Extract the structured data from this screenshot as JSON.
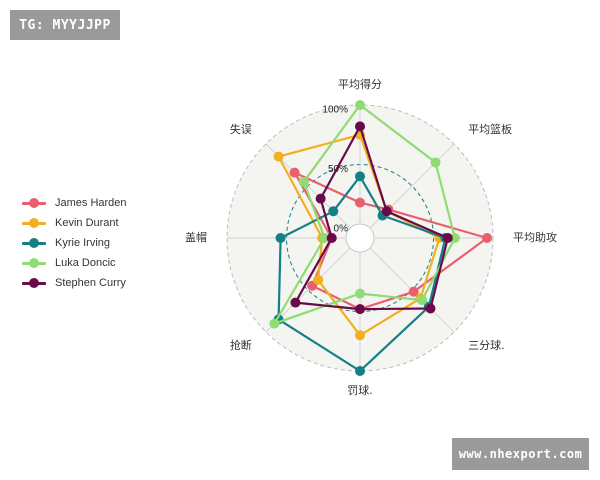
{
  "watermark_top": "TG: MYYJJPP",
  "watermark_bottom": "www.nhexport.com",
  "chart_data": {
    "type": "radar",
    "axes": [
      "平均得分",
      "平均篮板",
      "平均助攻",
      "三分球.",
      "罚球.",
      "抢断",
      "盖帽",
      "失误"
    ],
    "tick_labels": [
      "0%",
      "50%",
      "100%"
    ],
    "range": [
      0,
      100
    ],
    "series": [
      {
        "name": "James Harden",
        "color": "#e86070",
        "values": [
          18,
          22,
          95,
          52,
          48,
          45,
          12,
          66
        ]
      },
      {
        "name": "Kevin Durant",
        "color": "#f0b021",
        "values": [
          75,
          20,
          55,
          60,
          70,
          38,
          20,
          85
        ]
      },
      {
        "name": "Kyrie Irving",
        "color": "#167f85",
        "values": [
          40,
          15,
          60,
          70,
          100,
          85,
          55,
          20
        ]
      },
      {
        "name": "Luka Doncic",
        "color": "#8fdc72",
        "values": [
          100,
          78,
          68,
          62,
          35,
          90,
          18,
          55
        ]
      },
      {
        "name": "Stephen Curry",
        "color": "#6b0a4b",
        "values": [
          82,
          20,
          62,
          72,
          48,
          65,
          12,
          35
        ]
      }
    ]
  }
}
